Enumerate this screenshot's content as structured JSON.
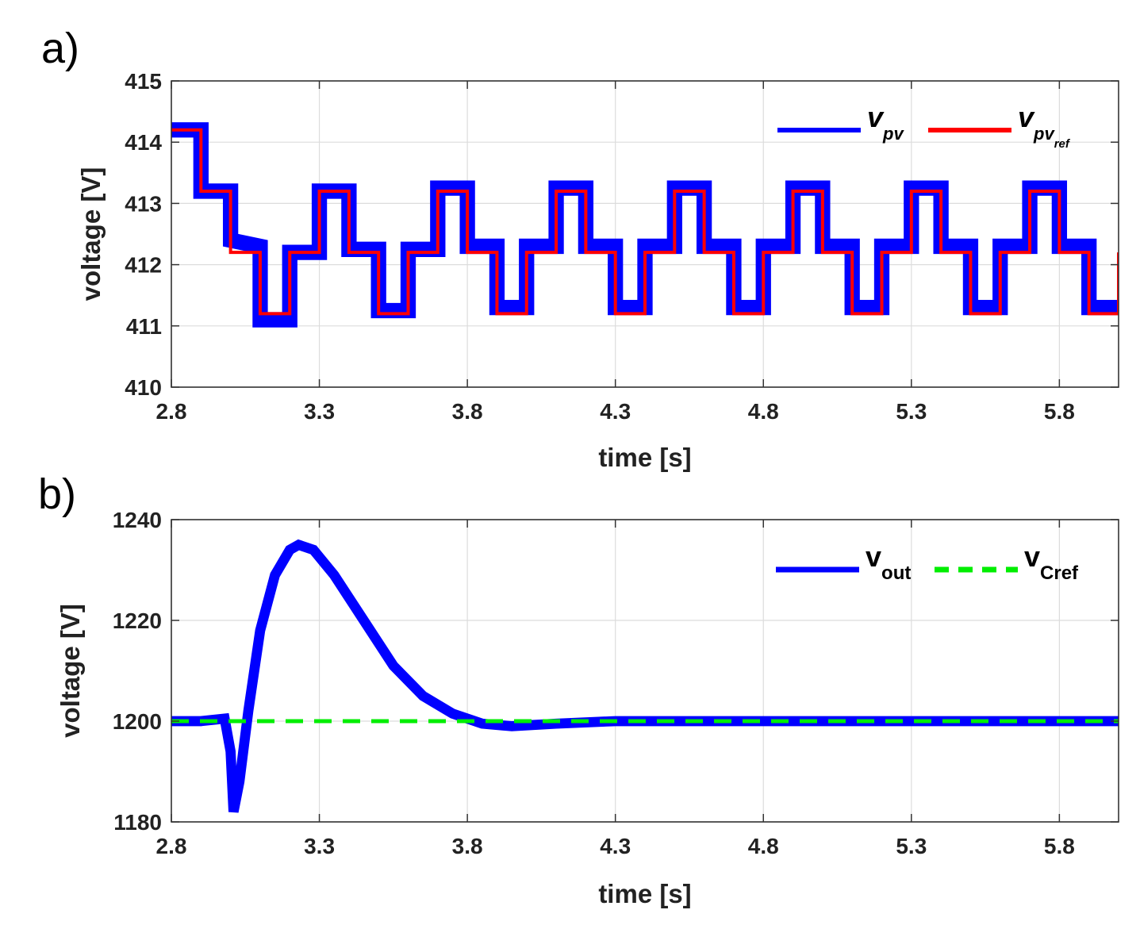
{
  "panels": [
    {
      "label": "a)"
    },
    {
      "label": "b)"
    }
  ],
  "colors": {
    "vpv": "#0000ff",
    "vpv_ref": "#ff0000",
    "vout": "#0000ff",
    "vcref": "#00ee00",
    "grid": "#dcdcdc",
    "axis": "#333333"
  },
  "chart_data": [
    {
      "type": "line",
      "panel": "a)",
      "xlabel": "time [s]",
      "ylabel": "voltage [V]",
      "xlim": [
        2.8,
        6.0
      ],
      "ylim": [
        410,
        415
      ],
      "xticks": [
        2.8,
        3.3,
        3.8,
        4.3,
        4.8,
        5.3,
        5.8
      ],
      "xtick_labels": [
        "2.8",
        "3.3",
        "3.8",
        "4.3",
        "4.8",
        "5.3",
        "5.8"
      ],
      "yticks": [
        410,
        411,
        412,
        413,
        414,
        415
      ],
      "ytick_labels": [
        "410",
        "411",
        "412",
        "413",
        "414",
        "415"
      ],
      "grid": true,
      "legend": {
        "placement": "top-right",
        "entries": [
          {
            "main": "v",
            "sub": "pv",
            "subsub": ""
          },
          {
            "main": "v",
            "sub": "pv",
            "subsub": "ref"
          }
        ]
      },
      "series": [
        {
          "name": "v_pv",
          "ripple_band": 0.25,
          "x": [
            2.8,
            2.9,
            2.9,
            3.0,
            3.0,
            3.1,
            3.1,
            3.2,
            3.2,
            3.3,
            3.3,
            3.4,
            3.4,
            3.5,
            3.5,
            3.6,
            3.6,
            3.7,
            3.7,
            3.8,
            3.8,
            3.9,
            3.9,
            4.0,
            4.0,
            4.1,
            4.1,
            4.2,
            4.2,
            4.3,
            4.3,
            4.4,
            4.4,
            4.5,
            4.5,
            4.6,
            4.6,
            4.7,
            4.7,
            4.8,
            4.8,
            4.9,
            4.9,
            5.0,
            5.0,
            5.1,
            5.1,
            5.2,
            5.2,
            5.3,
            5.3,
            5.4,
            5.4,
            5.5,
            5.5,
            5.6,
            5.6,
            5.7,
            5.7,
            5.8,
            5.8,
            5.9,
            5.9,
            6.0
          ],
          "y": [
            414.2,
            414.2,
            413.2,
            413.2,
            412.4,
            412.3,
            411.1,
            411.1,
            412.2,
            412.2,
            413.2,
            413.2,
            412.25,
            412.25,
            411.25,
            411.25,
            412.25,
            412.25,
            413.25,
            413.25,
            412.3,
            412.3,
            411.3,
            411.3,
            412.3,
            412.3,
            413.25,
            413.25,
            412.3,
            412.3,
            411.3,
            411.3,
            412.3,
            412.3,
            413.25,
            413.25,
            412.3,
            412.3,
            411.3,
            411.3,
            412.3,
            412.3,
            413.25,
            413.25,
            412.3,
            412.3,
            411.3,
            411.3,
            412.3,
            412.3,
            413.25,
            413.25,
            412.3,
            412.3,
            411.3,
            411.3,
            412.3,
            412.3,
            413.25,
            413.25,
            412.3,
            412.3,
            411.3,
            411.3
          ]
        },
        {
          "name": "v_pv_ref",
          "x": [
            2.8,
            2.9,
            2.9,
            3.0,
            3.0,
            3.1,
            3.1,
            3.2,
            3.2,
            3.3,
            3.3,
            3.4,
            3.4,
            3.5,
            3.5,
            3.6,
            3.6,
            3.7,
            3.7,
            3.8,
            3.8,
            3.9,
            3.9,
            4.0,
            4.0,
            4.1,
            4.1,
            4.2,
            4.2,
            4.3,
            4.3,
            4.4,
            4.4,
            4.5,
            4.5,
            4.6,
            4.6,
            4.7,
            4.7,
            4.8,
            4.8,
            4.9,
            4.9,
            5.0,
            5.0,
            5.1,
            5.1,
            5.2,
            5.2,
            5.3,
            5.3,
            5.4,
            5.4,
            5.5,
            5.5,
            5.6,
            5.6,
            5.7,
            5.7,
            5.8,
            5.8,
            5.9,
            5.9,
            6.0,
            6.0
          ],
          "y": [
            414.2,
            414.2,
            413.2,
            413.2,
            412.2,
            412.2,
            411.2,
            411.2,
            412.2,
            412.2,
            413.2,
            413.2,
            412.2,
            412.2,
            411.2,
            411.2,
            412.2,
            412.2,
            413.2,
            413.2,
            412.2,
            412.2,
            411.2,
            411.2,
            412.2,
            412.2,
            413.2,
            413.2,
            412.2,
            412.2,
            411.2,
            411.2,
            412.2,
            412.2,
            413.2,
            413.2,
            412.2,
            412.2,
            411.2,
            411.2,
            412.2,
            412.2,
            413.2,
            413.2,
            412.2,
            412.2,
            411.2,
            411.2,
            412.2,
            412.2,
            413.2,
            413.2,
            412.2,
            412.2,
            411.2,
            411.2,
            412.2,
            412.2,
            413.2,
            413.2,
            412.2,
            412.2,
            411.2,
            411.2,
            412.2
          ]
        }
      ]
    },
    {
      "type": "line",
      "panel": "b)",
      "xlabel": "time [s]",
      "ylabel": "voltage [V]",
      "xlim": [
        2.8,
        6.0
      ],
      "ylim": [
        1180,
        1240
      ],
      "xticks": [
        2.8,
        3.3,
        3.8,
        4.3,
        4.8,
        5.3,
        5.8
      ],
      "xtick_labels": [
        "2.8",
        "3.3",
        "3.8",
        "4.3",
        "4.8",
        "5.3",
        "5.8"
      ],
      "yticks": [
        1180,
        1200,
        1220,
        1240
      ],
      "ytick_labels": [
        "1180",
        "1200",
        "1220",
        "1240"
      ],
      "grid": true,
      "legend": {
        "placement": "top-right",
        "entries": [
          {
            "main": "v",
            "sub": "out",
            "subsub": ""
          },
          {
            "main": "v",
            "sub": "Cref",
            "subsub": ""
          }
        ]
      },
      "series": [
        {
          "name": "v_out",
          "ripple_band": 2.0,
          "x": [
            2.8,
            2.9,
            2.98,
            3.0,
            3.01,
            3.03,
            3.06,
            3.1,
            3.15,
            3.2,
            3.23,
            3.28,
            3.35,
            3.45,
            3.55,
            3.65,
            3.75,
            3.85,
            3.95,
            4.1,
            4.3,
            4.6,
            5.0,
            5.5,
            6.0
          ],
          "y": [
            1200,
            1200,
            1200.5,
            1194,
            1182,
            1188,
            1202,
            1218,
            1229,
            1234,
            1235,
            1234,
            1229,
            1220,
            1211,
            1205,
            1201.5,
            1199.5,
            1199,
            1199.5,
            1200,
            1200,
            1200,
            1200,
            1200
          ]
        },
        {
          "name": "v_Cref",
          "dashed": true,
          "x": [
            2.8,
            6.0
          ],
          "y": [
            1200,
            1200
          ]
        }
      ]
    }
  ]
}
